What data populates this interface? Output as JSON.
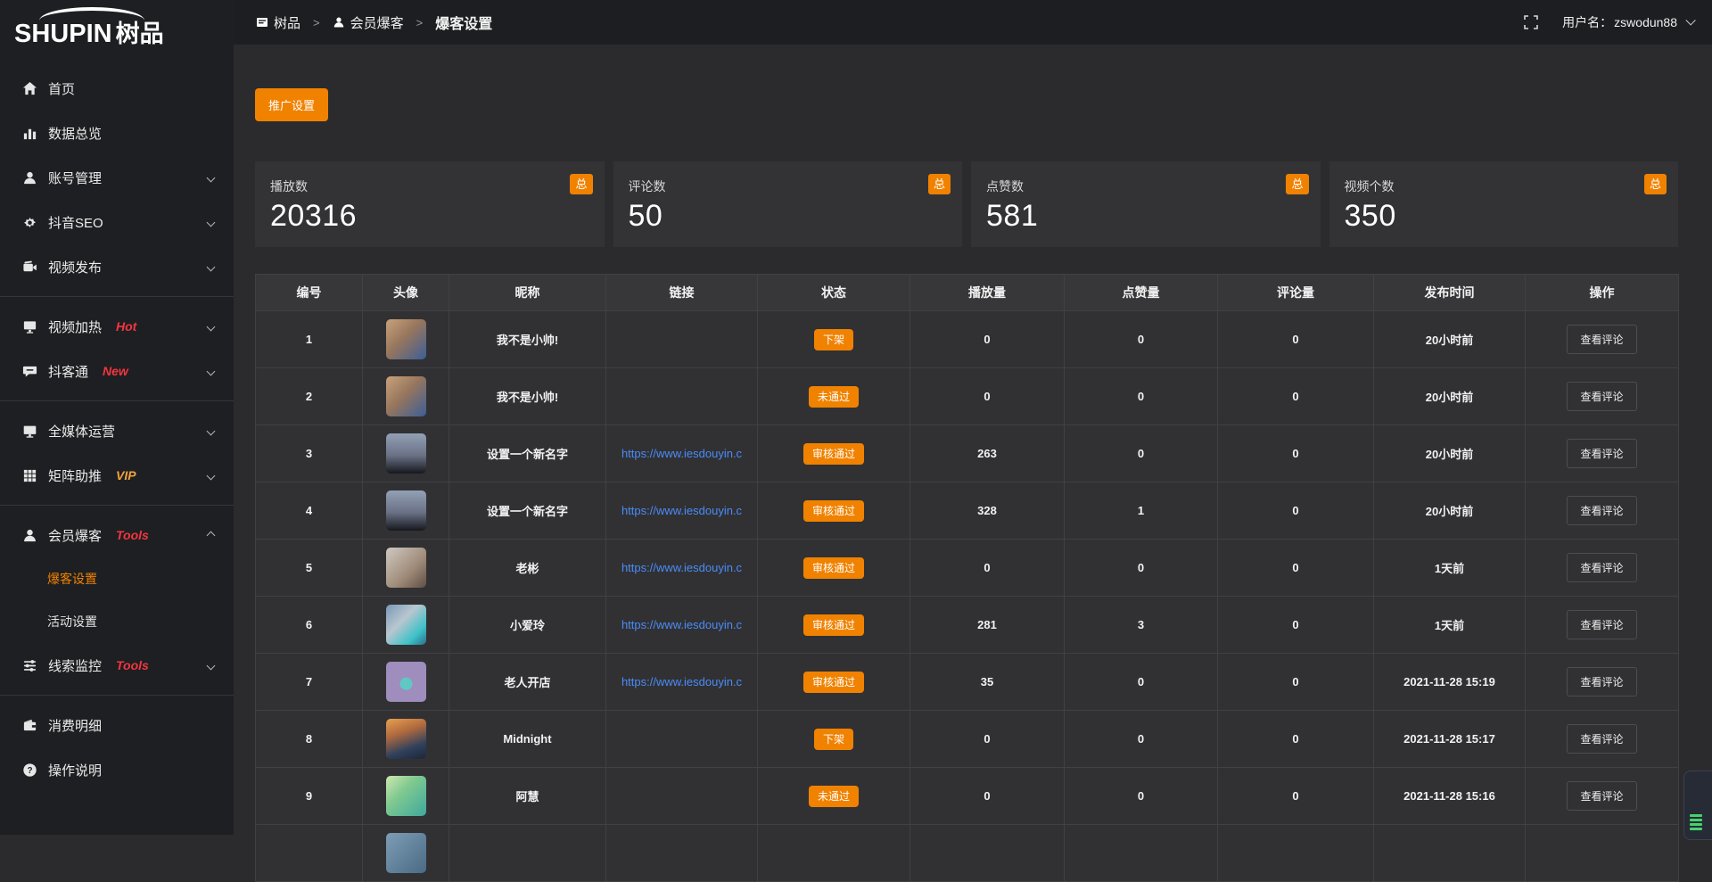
{
  "accent_orange": "#f08200",
  "accent_red": "#f5353f",
  "accent_gold": "#f0a43c",
  "link_color": "#4a8cf7",
  "sidebar": {
    "logo_en": "SHUPIN",
    "logo_cn": "树品",
    "items": [
      {
        "label": "首页",
        "icon": "home-icon"
      },
      {
        "label": "数据总览",
        "icon": "bar-chart-icon"
      },
      {
        "label": "账号管理",
        "icon": "user-icon",
        "chevron": "down"
      },
      {
        "label": "抖音SEO",
        "icon": "gear-icon",
        "chevron": "down"
      },
      {
        "label": "视频发布",
        "icon": "video-icon",
        "chevron": "down",
        "divider_after": true
      },
      {
        "label": "视频加热",
        "icon": "monitor-icon",
        "tag": "Hot",
        "tag_color": "#f5353f",
        "chevron": "down"
      },
      {
        "label": "抖客通",
        "icon": "chat-icon",
        "tag": "New",
        "tag_color": "#f5353f",
        "chevron": "down",
        "divider_after": true
      },
      {
        "label": "全媒体运营",
        "icon": "display-icon",
        "chevron": "down"
      },
      {
        "label": "矩阵助推",
        "icon": "grid-icon",
        "tag": "VIP",
        "tag_color": "#f0a43c",
        "chevron": "down",
        "divider_after": true
      },
      {
        "label": "会员爆客",
        "icon": "member-icon",
        "tag": "Tools",
        "tag_color": "#f5353f",
        "chevron": "up",
        "children": [
          {
            "label": "爆客设置",
            "active": true
          },
          {
            "label": "活动设置",
            "active": false
          }
        ]
      },
      {
        "label": "线索监控",
        "icon": "sliders-icon",
        "tag": "Tools",
        "tag_color": "#f5353f",
        "chevron": "down",
        "divider_after": true
      },
      {
        "label": "消费明细",
        "icon": "wallet-icon"
      },
      {
        "label": "操作说明",
        "icon": "question-icon"
      }
    ]
  },
  "topbar": {
    "breadcrumb": [
      {
        "label": "树品",
        "icon": "app-icon"
      },
      {
        "label": "会员爆客",
        "icon": "person-icon"
      },
      {
        "label": "爆客设置",
        "icon": ""
      }
    ],
    "separator": ">",
    "username_label": "用户名：",
    "username": "zswodun88"
  },
  "toolbar": {
    "promo_button": "推广设置"
  },
  "stats": {
    "badge": "总",
    "cards": [
      {
        "label": "播放数",
        "value": "20316"
      },
      {
        "label": "评论数",
        "value": "50"
      },
      {
        "label": "点赞数",
        "value": "581"
      },
      {
        "label": "视频个数",
        "value": "350"
      }
    ]
  },
  "table": {
    "columns": [
      "编号",
      "头像",
      "昵称",
      "链接",
      "状态",
      "播放量",
      "点赞量",
      "评论量",
      "发布时间",
      "操作"
    ],
    "action_label": "查看评论",
    "rows": [
      {
        "id": "1",
        "nickname": "我不是小帅!",
        "link": "",
        "status": "下架",
        "plays": "0",
        "likes": "0",
        "comments": "0",
        "time": "20小时前",
        "avatar_bg": "linear-gradient(135deg,#c9a27c 0%,#97765d 45%,#3c5e97 100%)"
      },
      {
        "id": "2",
        "nickname": "我不是小帅!",
        "link": "",
        "status": "未通过",
        "plays": "0",
        "likes": "0",
        "comments": "0",
        "time": "20小时前",
        "avatar_bg": "linear-gradient(135deg,#c9a27c 0%,#97765d 45%,#3c5e97 100%)"
      },
      {
        "id": "3",
        "nickname": "设置一个新名字",
        "link": "https://www.iesdouyin.c",
        "status": "审核通过",
        "plays": "263",
        "likes": "0",
        "comments": "0",
        "time": "20小时前",
        "avatar_bg": "linear-gradient(180deg,#93a0b5 0%,#6a7185 55%,#16181d 100%)"
      },
      {
        "id": "4",
        "nickname": "设置一个新名字",
        "link": "https://www.iesdouyin.c",
        "status": "审核通过",
        "plays": "328",
        "likes": "1",
        "comments": "0",
        "time": "20小时前",
        "avatar_bg": "linear-gradient(180deg,#93a0b5 0%,#6a7185 55%,#16181d 100%)"
      },
      {
        "id": "5",
        "nickname": "老彬",
        "link": "https://www.iesdouyin.c",
        "status": "审核通过",
        "plays": "0",
        "likes": "0",
        "comments": "0",
        "time": "1天前",
        "avatar_bg": "linear-gradient(135deg,#cfcac2 0%,#9f8a78 60%,#5e4f44 100%)"
      },
      {
        "id": "6",
        "nickname": "小爱玲",
        "link": "https://www.iesdouyin.c",
        "status": "审核通过",
        "plays": "281",
        "likes": "3",
        "comments": "0",
        "time": "1天前",
        "avatar_bg": "linear-gradient(135deg,#7899b8 0%,#b9c6cf 40%,#3ec1c7 75%,#2a6f8e 100%)"
      },
      {
        "id": "7",
        "nickname": "老人开店",
        "link": "https://www.iesdouyin.c",
        "status": "审核通过",
        "plays": "35",
        "likes": "0",
        "comments": "0",
        "time": "2021-11-28 15:19",
        "avatar_bg": "radial-gradient(circle at 50% 55%, #5fc8c4 0 20%, #9e8dbd 22%)"
      },
      {
        "id": "8",
        "nickname": "Midnight",
        "link": "",
        "status": "下架",
        "plays": "0",
        "likes": "0",
        "comments": "0",
        "time": "2021-11-28 15:17",
        "avatar_bg": "linear-gradient(160deg,#e8a050 0%,#b06a3e 35%,#30415c 70%,#1c2738 100%)"
      },
      {
        "id": "9",
        "nickname": "阿慧",
        "link": "",
        "status": "未通过",
        "plays": "0",
        "likes": "0",
        "comments": "0",
        "time": "2021-11-28 15:16",
        "avatar_bg": "linear-gradient(135deg,#cfe8b0 0%,#7fc98f 40%,#3ea89e 100%)"
      },
      {
        "id": "",
        "nickname": "",
        "link": "",
        "status": "",
        "plays": "",
        "likes": "",
        "comments": "",
        "time": "",
        "avatar_bg": "linear-gradient(135deg,#7e9db5,#4a6a85)"
      }
    ]
  }
}
